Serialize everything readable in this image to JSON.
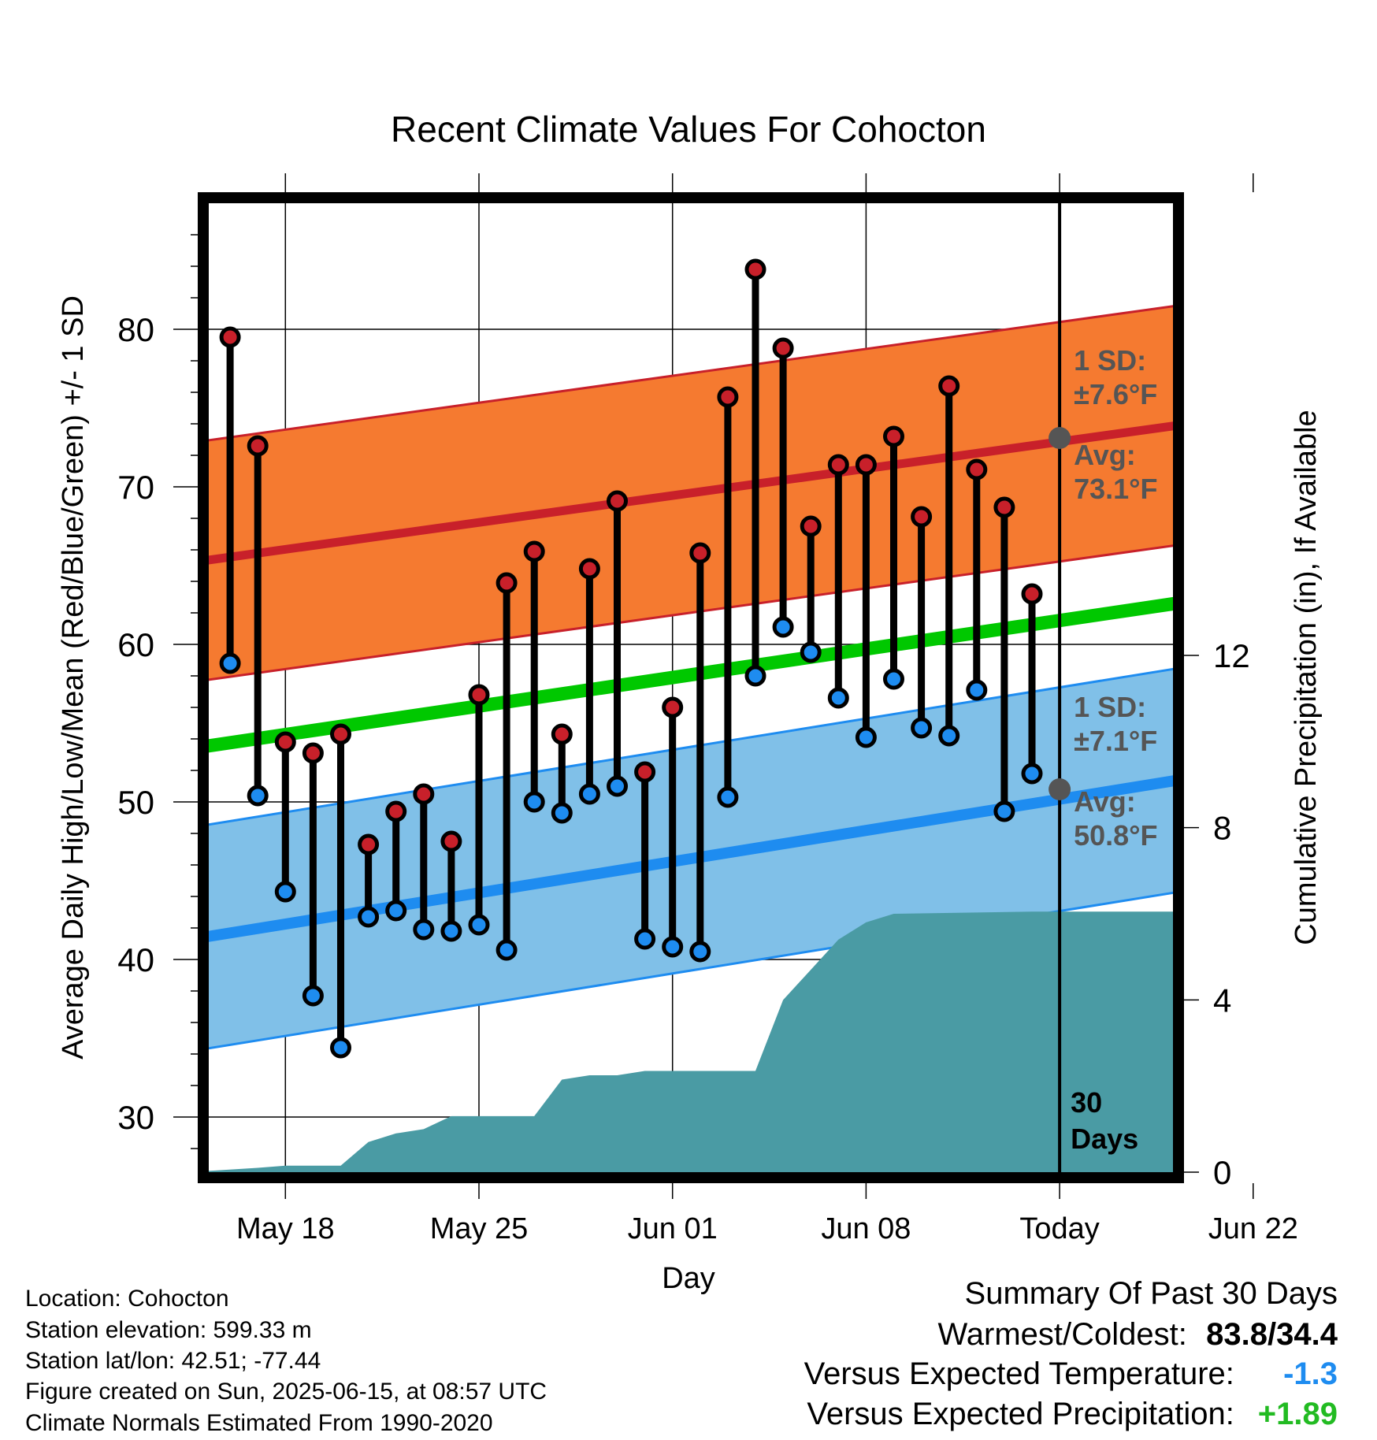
{
  "chart_data": {
    "type": "line",
    "title": "Recent Climate Values For Cohocton",
    "xlabel": "Day",
    "ylabel": "Average Daily High/Low/Mean (Red/Blue/Green) +/- 1 SD",
    "ylabel_right": "Cumulative Precipitation (in), If Available",
    "x_tick_labels": [
      "May 18",
      "May 25",
      "Jun 01",
      "Jun 08",
      "Today",
      "Jun 22"
    ],
    "y_ticks": [
      "30",
      "40",
      "50",
      "60",
      "70",
      "80"
    ],
    "y_right_ticks": [
      "0",
      "4",
      "8",
      "12"
    ],
    "ylim": [
      26.5,
      88
    ],
    "ylim_right": [
      0,
      22.5
    ],
    "days": [
      "May 16",
      "May 17",
      "May 18",
      "May 19",
      "May 20",
      "May 21",
      "May 22",
      "May 23",
      "May 24",
      "May 25",
      "May 26",
      "May 27",
      "May 28",
      "May 29",
      "May 30",
      "May 31",
      "Jun 01",
      "Jun 02",
      "Jun 03",
      "Jun 04",
      "Jun 05",
      "Jun 06",
      "Jun 07",
      "Jun 08",
      "Jun 09",
      "Jun 10",
      "Jun 11",
      "Jun 12",
      "Jun 13",
      "Jun 14"
    ],
    "series": [
      {
        "name": "High",
        "color": "#c8202a",
        "values": [
          79.5,
          72.6,
          53.8,
          53.1,
          54.3,
          47.3,
          49.4,
          50.5,
          47.5,
          56.8,
          63.9,
          65.9,
          54.3,
          64.8,
          69.1,
          51.9,
          56.0,
          65.8,
          75.7,
          83.8,
          78.8,
          67.5,
          71.4,
          71.4,
          73.2,
          68.1,
          76.4,
          71.1,
          68.7,
          63.2
        ]
      },
      {
        "name": "Low",
        "color": "#1e8cf0",
        "values": [
          58.8,
          50.4,
          44.3,
          37.7,
          34.4,
          42.7,
          43.1,
          41.9,
          41.8,
          42.2,
          40.6,
          50.0,
          49.3,
          50.5,
          51.0,
          41.3,
          40.8,
          40.5,
          50.3,
          58.0,
          61.1,
          59.5,
          56.6,
          54.1,
          57.8,
          54.7,
          54.2,
          57.1,
          49.4,
          51.8
        ]
      }
    ],
    "normal_bands": [
      {
        "name": "High normal",
        "color": "#c8202a",
        "band_color": "#f57a30",
        "x": [
          "May 15",
          "Jun 25"
        ],
        "mean": [
          65.3,
          75.3
        ],
        "sd": 7.6
      },
      {
        "name": "Mean normal",
        "color": "#00c800",
        "x": [
          "May 15",
          "Jun 25"
        ],
        "mean": [
          53.5,
          64.1
        ]
      },
      {
        "name": "Low normal",
        "color": "#1e8cf0",
        "band_color": "#80c0e8",
        "x": [
          "May 15",
          "Jun 25"
        ],
        "mean": [
          41.4,
          53.0
        ],
        "sd": 7.1
      }
    ],
    "precipitation": {
      "color": "#4a9ba4",
      "days": [
        "May 15",
        "May 17",
        "May 18",
        "May 19",
        "May 20",
        "May 21",
        "May 22",
        "May 23",
        "May 24",
        "May 25",
        "May 26",
        "May 27",
        "May 28",
        "May 29",
        "May 30",
        "May 31",
        "Jun 01",
        "Jun 02",
        "Jun 03",
        "Jun 04",
        "Jun 05",
        "Jun 06",
        "Jun 07",
        "Jun 08",
        "Jun 09",
        "Jun 14",
        "Jun 25"
      ],
      "values": [
        0.02,
        0.1,
        0.15,
        0.15,
        0.15,
        0.7,
        0.9,
        1.0,
        1.3,
        1.3,
        1.3,
        1.3,
        2.15,
        2.25,
        2.25,
        2.35,
        2.35,
        2.35,
        2.35,
        2.35,
        4.0,
        4.7,
        5.4,
        5.8,
        6.0,
        6.05,
        6.05
      ]
    },
    "annotations": {
      "high_sd": "1 SD:\n±7.6°F",
      "high_avg": "Avg:\n73.1°F",
      "low_sd": "1 SD:\n±7.1°F",
      "low_avg": "Avg:\n50.8°F",
      "period": "30\nDays",
      "today_high_avg": 73.1,
      "today_low_avg": 50.8
    },
    "grid": true
  },
  "info": {
    "location": "Location: Cohocton",
    "elevation": "Station elevation: 599.33 m",
    "latlon": "Station lat/lon: 42.51; -77.44",
    "created": "Figure created on Sun, 2025-06-15, at 08:57 UTC",
    "normals": "Climate Normals Estimated From 1990-2020"
  },
  "summary": {
    "title": "Summary Of Past 30 Days",
    "warm_cold_label": "Warmest/Coldest:",
    "warm_cold_value": "83.8/34.4",
    "temp_label": "Versus Expected Temperature:",
    "temp_value": "-1.3",
    "temp_color": "#1e8cf0",
    "precip_label": "Versus Expected Precipitation:",
    "precip_value": "+1.89",
    "precip_color": "#22bb22"
  }
}
